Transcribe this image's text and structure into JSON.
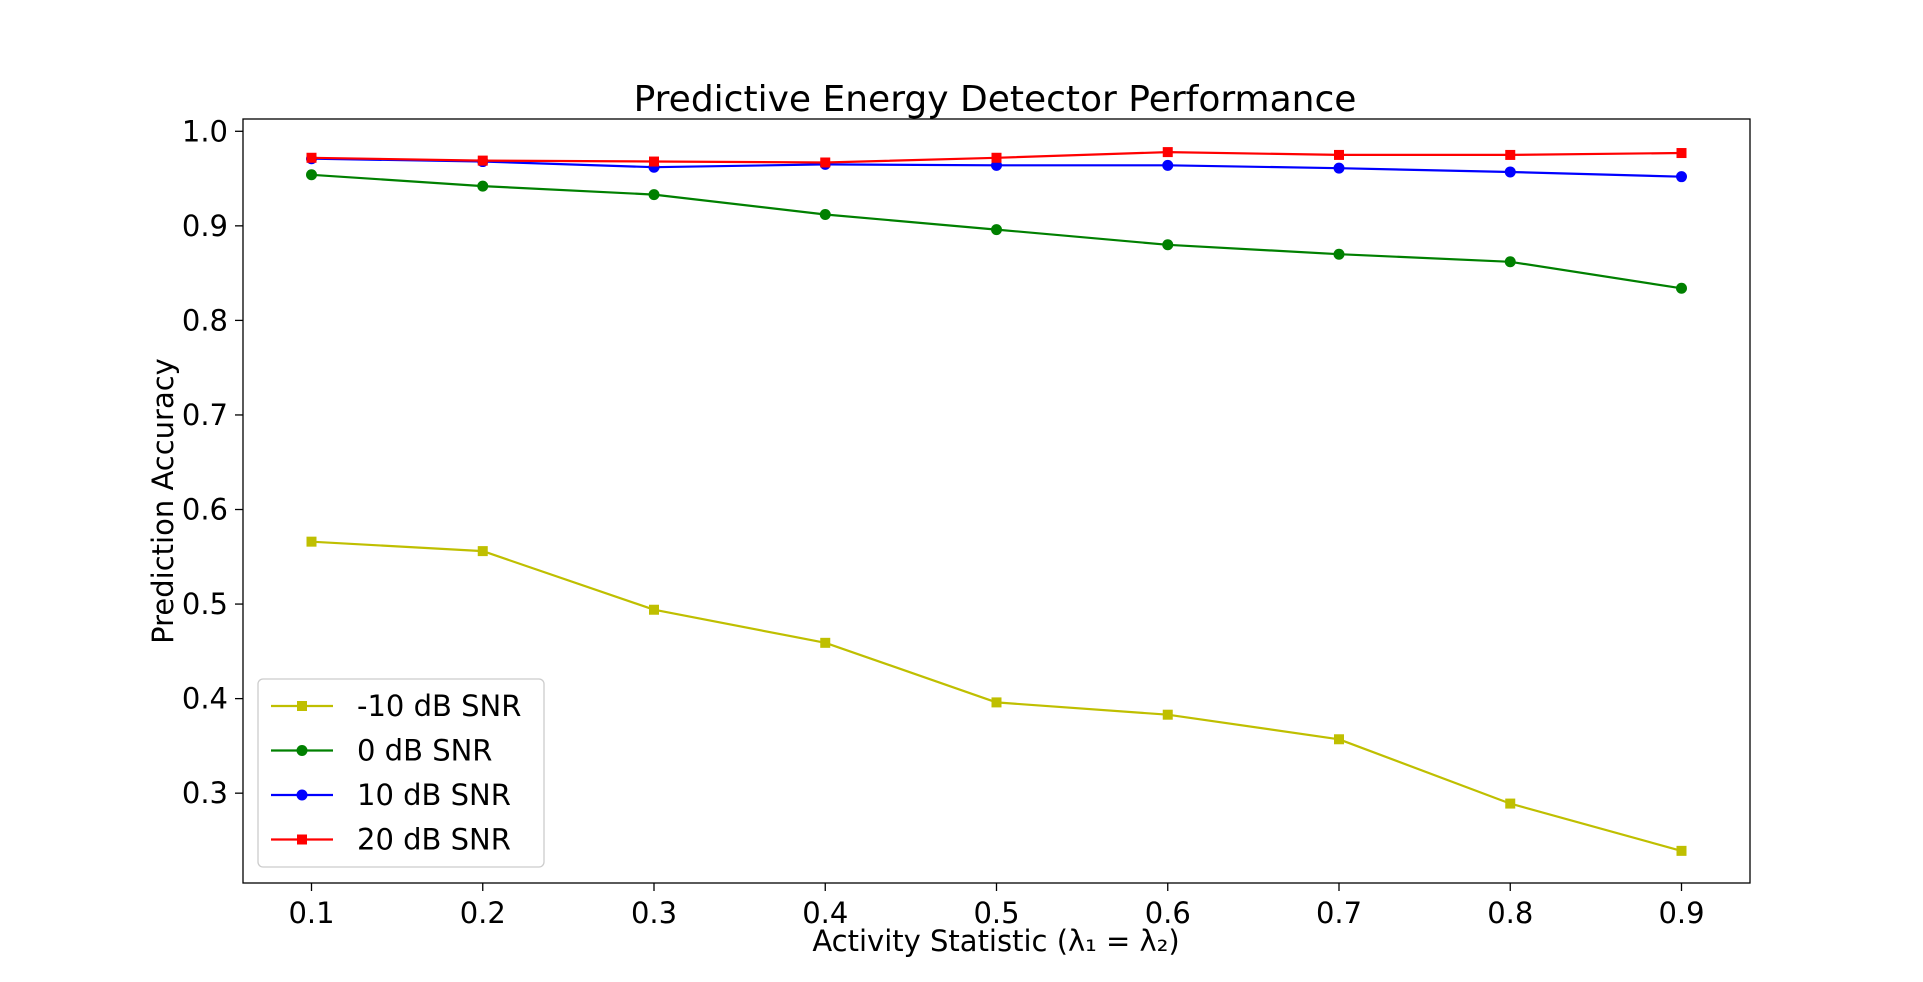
{
  "chart_data": {
    "type": "line",
    "title": "Predictive Energy Detector Performance",
    "xlabel": "Activity Statistic (λ₁ = λ₂)",
    "ylabel": "Prediction Accuracy",
    "x": [
      0.1,
      0.2,
      0.3,
      0.4,
      0.5,
      0.6,
      0.7,
      0.8,
      0.9
    ],
    "x_tick_labels": [
      "0.1",
      "0.2",
      "0.3",
      "0.4",
      "0.5",
      "0.6",
      "0.7",
      "0.8",
      "0.9"
    ],
    "y_ticks": [
      0.3,
      0.4,
      0.5,
      0.6,
      0.7,
      0.8,
      0.9,
      1.0
    ],
    "y_tick_labels": [
      "0.3",
      "0.4",
      "0.5",
      "0.6",
      "0.7",
      "0.8",
      "0.9",
      "1.0"
    ],
    "xlim": [
      0.06,
      0.94
    ],
    "ylim": [
      0.205,
      1.013
    ],
    "grid": false,
    "legend_position": "lower-left",
    "series": [
      {
        "name": "-10 dB SNR",
        "color": "#bfbf00",
        "marker": "square",
        "values": [
          0.566,
          0.556,
          0.494,
          0.459,
          0.396,
          0.383,
          0.357,
          0.289,
          0.239
        ]
      },
      {
        "name": "0 dB SNR",
        "color": "#008000",
        "marker": "circle",
        "values": [
          0.954,
          0.942,
          0.933,
          0.912,
          0.896,
          0.88,
          0.87,
          0.862,
          0.834
        ]
      },
      {
        "name": "10 dB SNR",
        "color": "#0000ff",
        "marker": "circle",
        "values": [
          0.971,
          0.968,
          0.962,
          0.965,
          0.964,
          0.964,
          0.961,
          0.957,
          0.952
        ]
      },
      {
        "name": "20 dB SNR",
        "color": "#ff0000",
        "marker": "square",
        "values": [
          0.972,
          0.969,
          0.968,
          0.967,
          0.972,
          0.978,
          0.975,
          0.975,
          0.977
        ]
      }
    ]
  }
}
